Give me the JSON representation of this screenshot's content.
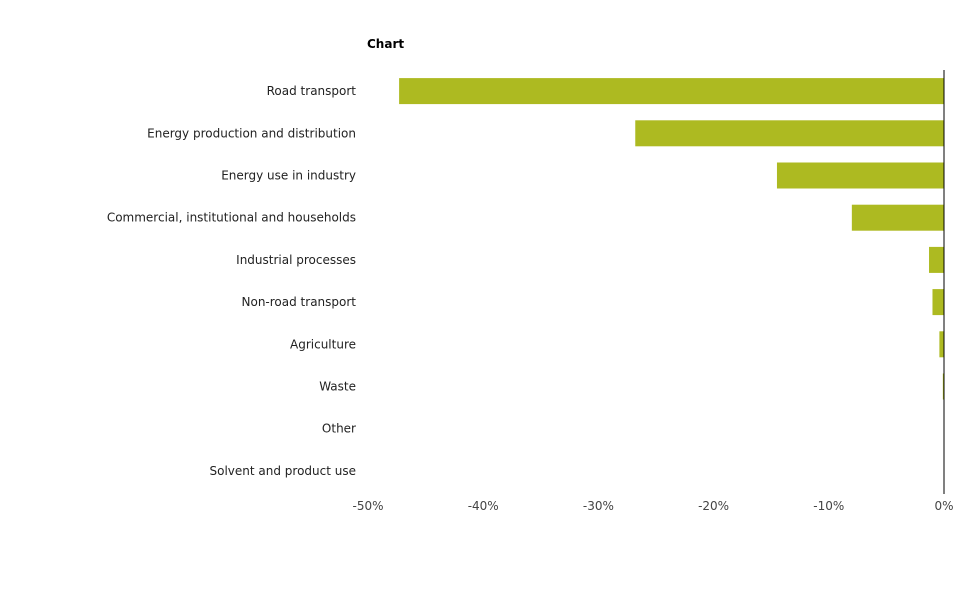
{
  "chart_data": {
    "type": "bar",
    "orientation": "horizontal",
    "title": "Chart",
    "xlabel": "",
    "ylabel": "",
    "categories": [
      "Road transport",
      "Energy production and distribution",
      "Energy use in industry",
      "Commercial, institutional and households",
      "Industrial processes",
      "Non-road transport",
      "Agriculture",
      "Waste",
      "Other",
      "Solvent and product use"
    ],
    "values": [
      -47.3,
      -26.8,
      -14.5,
      -8.0,
      -1.3,
      -1.0,
      -0.4,
      -0.1,
      0.0,
      0.0
    ],
    "xlim": [
      -50,
      0
    ],
    "ticks": [
      -50,
      -40,
      -30,
      -20,
      -10,
      0
    ],
    "tick_labels": [
      "-50%",
      "-40%",
      "-30%",
      "-20%",
      "-10%",
      "0%"
    ],
    "bar_color": "#adba21",
    "axis_color": "#000000",
    "grid": false,
    "legend": "none"
  }
}
